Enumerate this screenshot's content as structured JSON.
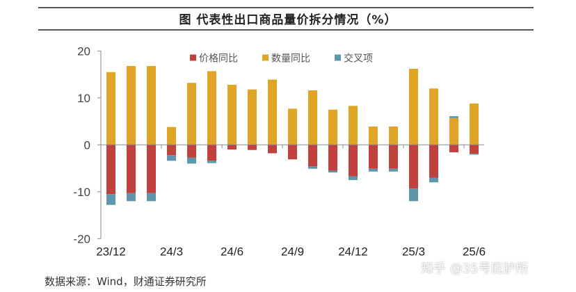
{
  "chart_data": {
    "type": "bar",
    "stacked": true,
    "title": "图  代表性出口商品量价拆分情况（%）",
    "xlabel": "",
    "ylabel": "",
    "ylim": [
      -20,
      20
    ],
    "yticks": [
      20,
      10,
      0,
      -10,
      -20
    ],
    "grid": false,
    "legend_position": "top",
    "categories": [
      "23/12",
      "24/1",
      "24/2",
      "24/3",
      "24/4",
      "24/5",
      "24/6",
      "24/7",
      "24/8",
      "24/9",
      "24/10",
      "24/11",
      "24/12",
      "25/1",
      "25/2",
      "25/3",
      "25/4",
      "25/5",
      "25/6"
    ],
    "xtick_labels": [
      "23/12",
      "24/3",
      "24/6",
      "24/9",
      "24/12",
      "25/3",
      "25/6"
    ],
    "series": [
      {
        "name": "价格同比",
        "color": "#C0413D",
        "values": [
          -10.5,
          -10.3,
          -10.3,
          -2.2,
          -2.7,
          -3.4,
          -1.0,
          -1.1,
          -1.8,
          -3.1,
          -4.6,
          -5.5,
          -6.7,
          -5.1,
          -5.1,
          -9.3,
          -7.0,
          -1.6,
          -1.9
        ]
      },
      {
        "name": "数量同比",
        "color": "#E0A526",
        "values": [
          15.5,
          16.8,
          16.8,
          3.8,
          13.2,
          15.7,
          12.8,
          11.8,
          13.9,
          7.7,
          11.6,
          7.5,
          8.3,
          3.9,
          3.9,
          16.2,
          12.0,
          5.7,
          8.8
        ]
      },
      {
        "name": "交叉项",
        "color": "#5E97AB",
        "values": [
          -2.3,
          -1.7,
          -1.7,
          -1.2,
          -1.3,
          -0.5,
          0,
          0,
          0,
          0,
          -0.5,
          -0.4,
          -0.8,
          -0.6,
          -0.6,
          -2.7,
          -1.0,
          0.4,
          -0.2
        ]
      }
    ]
  },
  "source": "数据来源：Wind，财通证券研究所",
  "watermark": "知乎 @35号庇护所"
}
